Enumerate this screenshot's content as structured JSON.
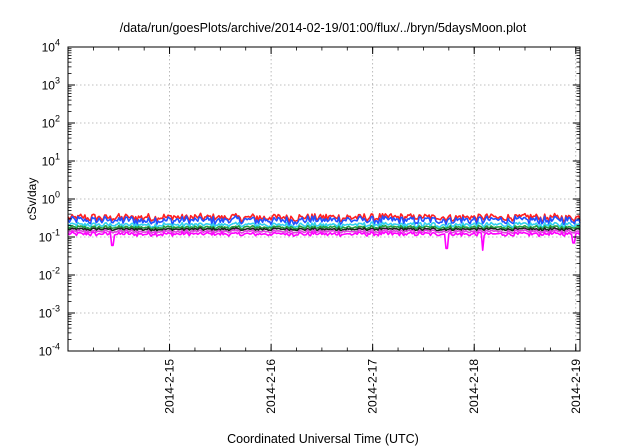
{
  "chart_data": {
    "type": "line",
    "title": "/data/run/goesPlots/archive/2014-02-19/01:00/flux/../bryn/5daysMoon.plot",
    "xlabel": "Coordinated Universal Time (UTC)",
    "ylabel": "cSv/day",
    "yscale": "log",
    "ylim": [
      0.0001,
      10000
    ],
    "xlim": [
      "2014-02-14T00:00",
      "2014-02-19T01:00"
    ],
    "grid": true,
    "x_ticks": [
      {
        "x": "2014-02-15T00:00",
        "label": "2014-2-15"
      },
      {
        "x": "2014-02-16T00:00",
        "label": "2014-2-16"
      },
      {
        "x": "2014-02-17T00:00",
        "label": "2014-2-17"
      },
      {
        "x": "2014-02-18T00:00",
        "label": "2014-2-18"
      },
      {
        "x": "2014-02-19T00:00",
        "label": "2014-2-19"
      }
    ],
    "y_ticks": [
      {
        "y": 0.0001,
        "base": "10",
        "exp": "-4"
      },
      {
        "y": 0.001,
        "base": "10",
        "exp": "-3"
      },
      {
        "y": 0.01,
        "base": "10",
        "exp": "-2"
      },
      {
        "y": 0.1,
        "base": "10",
        "exp": "-1"
      },
      {
        "y": 1,
        "base": "10",
        "exp": "0"
      },
      {
        "y": 10,
        "base": "10",
        "exp": "1"
      },
      {
        "y": 100,
        "base": "10",
        "exp": "2"
      },
      {
        "y": 1000,
        "base": "10",
        "exp": "3"
      },
      {
        "y": 10000,
        "base": "10",
        "exp": "4"
      }
    ],
    "series": [
      {
        "color": "#ff2020",
        "mean": 0.33,
        "spread": 0.28,
        "dips": []
      },
      {
        "color": "#2050ff",
        "mean": 0.28,
        "spread": 0.3,
        "dips": []
      },
      {
        "color": "#30d0f0",
        "mean": 0.21,
        "spread": 0.18,
        "dips": []
      },
      {
        "color": "#20a040",
        "mean": 0.18,
        "spread": 0.12,
        "dips": []
      },
      {
        "color": "#202020",
        "mean": 0.16,
        "spread": 0.1,
        "dips": []
      },
      {
        "color": "#e040e0",
        "mean": 0.14,
        "spread": 0.12,
        "dips": []
      },
      {
        "color": "#ff00ff",
        "mean": 0.12,
        "spread": 0.15,
        "dips": [
          [
            "2014-02-14T10:30",
            0.06
          ],
          [
            "2014-02-17T17:30",
            0.05
          ],
          [
            "2014-02-18T02:00",
            0.045
          ],
          [
            "2014-02-18T23:30",
            0.07
          ]
        ]
      }
    ]
  }
}
